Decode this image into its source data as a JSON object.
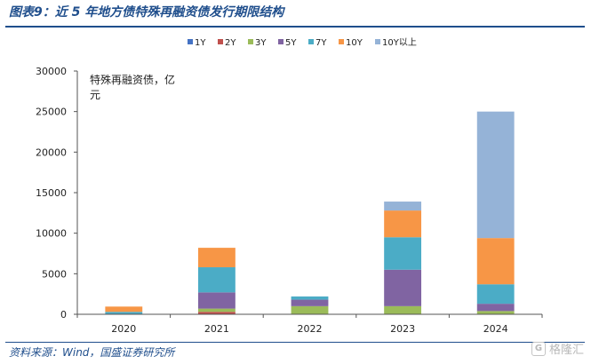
{
  "header": {
    "title": "图表9：近 5 年地方债特殊再融资债发行期限结构"
  },
  "footer": {
    "source": "资料来源：Wind，国盛证券研究所",
    "watermark_text": "格隆汇",
    "watermark_logo": "G"
  },
  "chart_data": {
    "type": "bar",
    "stacked": true,
    "categories": [
      "2020",
      "2021",
      "2022",
      "2023",
      "2024"
    ],
    "ylabel": "特殊再融资债，亿元",
    "ylabel_lines": [
      "特殊再融资债，亿",
      "元"
    ],
    "ylim": [
      0,
      30000
    ],
    "yticks": [
      0,
      5000,
      10000,
      15000,
      20000,
      25000,
      30000
    ],
    "grid": false,
    "legend_position": "top",
    "series": [
      {
        "name": "1Y",
        "color": "#4472c4",
        "values": [
          0,
          0,
          0,
          0,
          0
        ]
      },
      {
        "name": "2Y",
        "color": "#c0504d",
        "values": [
          0,
          300,
          0,
          0,
          0
        ]
      },
      {
        "name": "3Y",
        "color": "#9bbb59",
        "values": [
          0,
          400,
          1000,
          1000,
          400
        ]
      },
      {
        "name": "5Y",
        "color": "#8064a2",
        "values": [
          0,
          2000,
          800,
          4500,
          900
        ]
      },
      {
        "name": "7Y",
        "color": "#4bacc6",
        "values": [
          300,
          3100,
          400,
          4000,
          2400
        ]
      },
      {
        "name": "10Y",
        "color": "#f79646",
        "values": [
          650,
          2400,
          0,
          3300,
          5700
        ]
      },
      {
        "name": "10Y以上",
        "color": "#95b3d7",
        "values": [
          0,
          0,
          0,
          1100,
          15600
        ]
      }
    ]
  }
}
